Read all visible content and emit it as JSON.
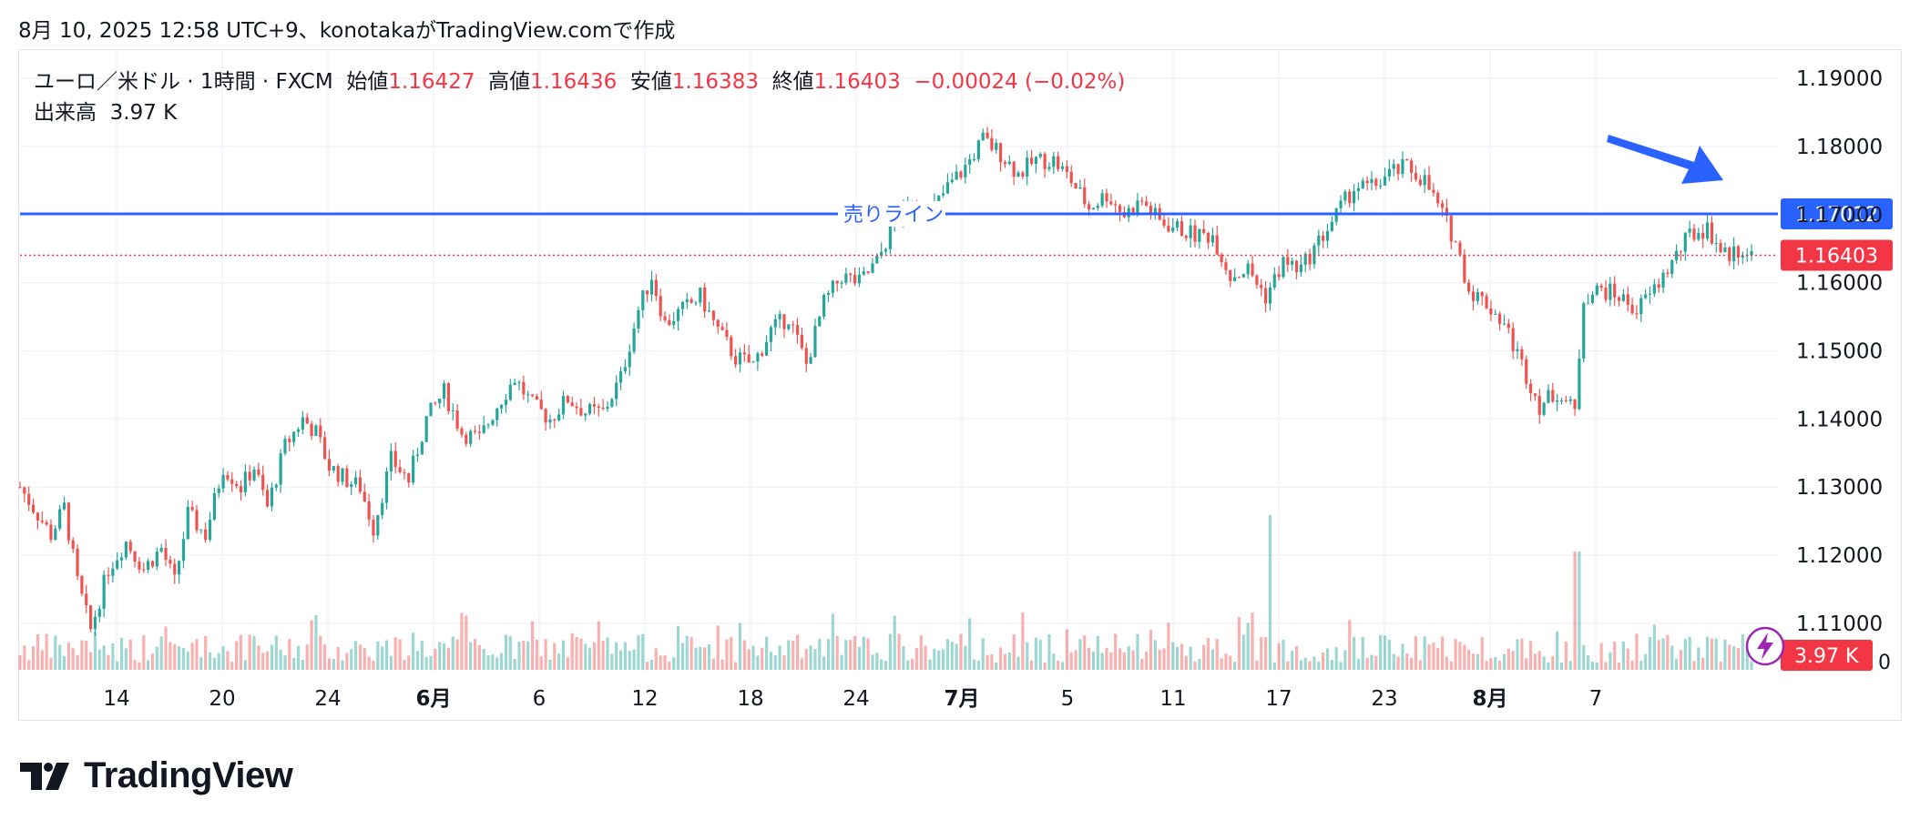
{
  "header": {
    "snapshot_text": "8月 10, 2025 12:58 UTC+9、konotakaがTradingView.comで作成"
  },
  "legend": {
    "symbol": "ユーロ／米ドル · 1時間 · FXCM",
    "open_label": "始値",
    "open": "1.16427",
    "high_label": "高値",
    "high": "1.16436",
    "low_label": "安値",
    "low": "1.16383",
    "close_label": "終値",
    "close": "1.16403",
    "change": "−0.00024 (−0.02%)",
    "volume_label": "出来高",
    "volume": "3.97 K"
  },
  "brand": {
    "name": "TradingView"
  },
  "colors": {
    "up": "#26a69a",
    "down": "#ef5350",
    "line": "#2962ff",
    "price_tag": "#f23645",
    "arrow": "#2962ff",
    "grid": "#f0f3fa"
  },
  "chart_data": {
    "type": "candlestick",
    "symbol": "EUR/USD",
    "timeframe": "1時間",
    "y_ticks": [
      "1.19000",
      "1.18000",
      "1.17000",
      "1.16000",
      "1.15000",
      "1.14000",
      "1.13000",
      "1.12000",
      "1.11000"
    ],
    "y_tick_values": [
      1.19,
      1.18,
      1.17,
      1.16,
      1.15,
      1.14,
      1.13,
      1.12,
      1.11
    ],
    "y_range": [
      1.1029,
      1.1943
    ],
    "volume_axis_label": "0",
    "x_ticks": [
      {
        "label": "14",
        "bold": false
      },
      {
        "label": "20",
        "bold": false
      },
      {
        "label": "24",
        "bold": false
      },
      {
        "label": "6月",
        "bold": true
      },
      {
        "label": "6",
        "bold": false
      },
      {
        "label": "12",
        "bold": false
      },
      {
        "label": "18",
        "bold": false
      },
      {
        "label": "24",
        "bold": false
      },
      {
        "label": "7月",
        "bold": true
      },
      {
        "label": "5",
        "bold": false
      },
      {
        "label": "11",
        "bold": false
      },
      {
        "label": "17",
        "bold": false
      },
      {
        "label": "23",
        "bold": false
      },
      {
        "label": "8月",
        "bold": true
      },
      {
        "label": "7",
        "bold": false
      }
    ],
    "price_path": [
      [
        0,
        1.13
      ],
      [
        4,
        1.126
      ],
      [
        7,
        1.123
      ],
      [
        10,
        1.127
      ],
      [
        13,
        1.116
      ],
      [
        16,
        1.109
      ],
      [
        20,
        1.118
      ],
      [
        24,
        1.122
      ],
      [
        28,
        1.118
      ],
      [
        32,
        1.121
      ],
      [
        35,
        1.116
      ],
      [
        38,
        1.126
      ],
      [
        42,
        1.123
      ],
      [
        46,
        1.133
      ],
      [
        50,
        1.13
      ],
      [
        53,
        1.133
      ],
      [
        56,
        1.127
      ],
      [
        60,
        1.136
      ],
      [
        64,
        1.14
      ],
      [
        67,
        1.138
      ],
      [
        70,
        1.133
      ],
      [
        74,
        1.131
      ],
      [
        77,
        1.13
      ],
      [
        80,
        1.124
      ],
      [
        84,
        1.134
      ],
      [
        88,
        1.131
      ],
      [
        92,
        1.14
      ],
      [
        96,
        1.144
      ],
      [
        100,
        1.138
      ],
      [
        104,
        1.137
      ],
      [
        108,
        1.142
      ],
      [
        112,
        1.146
      ],
      [
        116,
        1.142
      ],
      [
        120,
        1.14
      ],
      [
        124,
        1.143
      ],
      [
        128,
        1.141
      ],
      [
        132,
        1.141
      ],
      [
        136,
        1.146
      ],
      [
        140,
        1.156
      ],
      [
        143,
        1.161
      ],
      [
        146,
        1.154
      ],
      [
        150,
        1.156
      ],
      [
        154,
        1.158
      ],
      [
        158,
        1.153
      ],
      [
        162,
        1.149
      ],
      [
        166,
        1.148
      ],
      [
        170,
        1.153
      ],
      [
        174,
        1.155
      ],
      [
        178,
        1.148
      ],
      [
        182,
        1.157
      ],
      [
        186,
        1.161
      ],
      [
        190,
        1.16
      ],
      [
        194,
        1.163
      ],
      [
        198,
        1.169
      ],
      [
        202,
        1.172
      ],
      [
        206,
        1.17
      ],
      [
        210,
        1.174
      ],
      [
        214,
        1.177
      ],
      [
        218,
        1.181
      ],
      [
        222,
        1.179
      ],
      [
        226,
        1.176
      ],
      [
        230,
        1.178
      ],
      [
        234,
        1.178
      ],
      [
        238,
        1.175
      ],
      [
        242,
        1.171
      ],
      [
        246,
        1.173
      ],
      [
        250,
        1.17
      ],
      [
        254,
        1.172
      ],
      [
        258,
        1.169
      ],
      [
        262,
        1.168
      ],
      [
        266,
        1.167
      ],
      [
        270,
        1.167
      ],
      [
        274,
        1.161
      ],
      [
        278,
        1.162
      ],
      [
        282,
        1.158
      ],
      [
        286,
        1.163
      ],
      [
        290,
        1.162
      ],
      [
        294,
        1.166
      ],
      [
        298,
        1.17
      ],
      [
        302,
        1.174
      ],
      [
        306,
        1.174
      ],
      [
        310,
        1.176
      ],
      [
        314,
        1.177
      ],
      [
        318,
        1.175
      ],
      [
        322,
        1.17
      ],
      [
        325,
        1.166
      ],
      [
        328,
        1.159
      ],
      [
        332,
        1.157
      ],
      [
        336,
        1.154
      ],
      [
        340,
        1.148
      ],
      [
        344,
        1.142
      ],
      [
        348,
        1.144
      ],
      [
        352,
        1.141
      ],
      [
        354,
        1.158
      ],
      [
        358,
        1.159
      ],
      [
        362,
        1.158
      ],
      [
        366,
        1.156
      ],
      [
        370,
        1.159
      ],
      [
        374,
        1.163
      ],
      [
        378,
        1.167
      ],
      [
        382,
        1.168
      ],
      [
        386,
        1.164
      ],
      [
        390,
        1.165
      ],
      [
        392,
        1.164
      ]
    ],
    "sell_line": {
      "label": "売りライン",
      "value": 1.17012,
      "value_label": "1.17012"
    },
    "last_price": {
      "value": 1.16403,
      "label": "1.16403"
    },
    "last_volume_label": "3.97 K"
  }
}
